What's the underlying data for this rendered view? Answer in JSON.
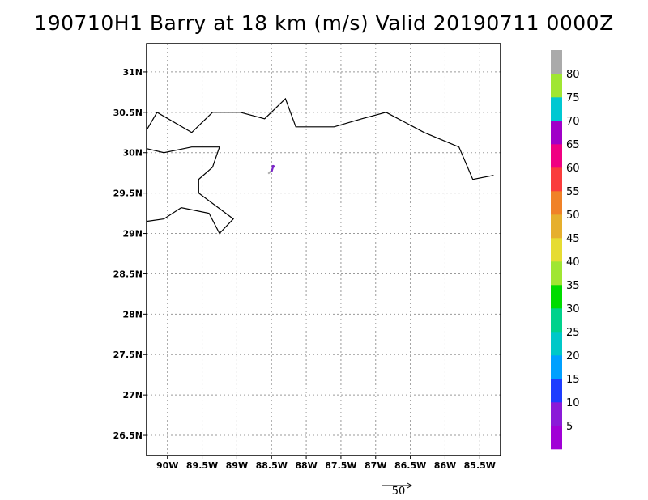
{
  "figure": {
    "title": "190710H1 Barry at 18 km (m/s) Valid 20190711 0000Z"
  },
  "map": {
    "lon_range": [
      -90.3,
      -85.2
    ],
    "lat_range": [
      26.25,
      31.35
    ],
    "lon_ticks": [
      {
        "value": -90,
        "label": "90W"
      },
      {
        "value": -89.5,
        "label": "89.5W"
      },
      {
        "value": -89,
        "label": "89W"
      },
      {
        "value": -88.5,
        "label": "88.5W"
      },
      {
        "value": -88,
        "label": "88W"
      },
      {
        "value": -87.5,
        "label": "87.5W"
      },
      {
        "value": -87,
        "label": "87W"
      },
      {
        "value": -86.5,
        "label": "86.5W"
      },
      {
        "value": -86,
        "label": "86W"
      },
      {
        "value": -85.5,
        "label": "85.5W"
      }
    ],
    "lat_ticks": [
      {
        "value": 31,
        "label": "31N"
      },
      {
        "value": 30.5,
        "label": "30.5N"
      },
      {
        "value": 30,
        "label": "30N"
      },
      {
        "value": 29.5,
        "label": "29.5N"
      },
      {
        "value": 29,
        "label": "29N"
      },
      {
        "value": 28.5,
        "label": "28.5N"
      },
      {
        "value": 28,
        "label": "28N"
      },
      {
        "value": 27.5,
        "label": "27.5N"
      },
      {
        "value": 27,
        "label": "27N"
      },
      {
        "value": 26.5,
        "label": "26.5N"
      }
    ],
    "gridlines": true,
    "coastline_segments": [
      [
        [
          -90.3,
          30.28
        ],
        [
          -90.15,
          30.5
        ],
        [
          -89.65,
          30.25
        ],
        [
          -89.35,
          30.5
        ],
        [
          -88.95,
          30.5
        ],
        [
          -88.6,
          30.42
        ],
        [
          -88.3,
          30.67
        ],
        [
          -88.15,
          30.32
        ],
        [
          -87.6,
          30.32
        ],
        [
          -87.2,
          30.42
        ],
        [
          -86.85,
          30.5
        ],
        [
          -86.3,
          30.25
        ],
        [
          -85.8,
          30.07
        ],
        [
          -85.6,
          29.67
        ],
        [
          -85.3,
          29.72
        ]
      ],
      [
        [
          -90.3,
          30.05
        ],
        [
          -90.05,
          30.0
        ],
        [
          -89.65,
          30.07
        ],
        [
          -89.25,
          30.07
        ],
        [
          -89.35,
          29.82
        ],
        [
          -89.55,
          29.67
        ],
        [
          -89.55,
          29.5
        ],
        [
          -89.05,
          29.18
        ],
        [
          -89.25,
          29.0
        ],
        [
          -89.4,
          29.25
        ],
        [
          -89.8,
          29.32
        ],
        [
          -90.05,
          29.18
        ],
        [
          -90.3,
          29.15
        ]
      ]
    ],
    "storm_symbol": {
      "position": {
        "lon": -88.5,
        "lat": 29.78
      },
      "colors": [
        "#aaaaaa",
        "#7b26c9"
      ]
    }
  },
  "colorbar": {
    "labels": [
      "5",
      "10",
      "15",
      "20",
      "25",
      "30",
      "35",
      "40",
      "45",
      "50",
      "55",
      "60",
      "65",
      "70",
      "75",
      "80"
    ],
    "colors": [
      "#a100d6",
      "#8b1ad8",
      "#1e3cff",
      "#00a0ff",
      "#00c8c8",
      "#00d28c",
      "#00dc00",
      "#a0e632",
      "#e6dc32",
      "#e6af2d",
      "#f08228",
      "#fa3c3c",
      "#f00082",
      "#a000c8",
      "#00c8d2",
      "#a0e632",
      "#aaaaaa"
    ]
  },
  "reference_vector": {
    "label": "50"
  }
}
